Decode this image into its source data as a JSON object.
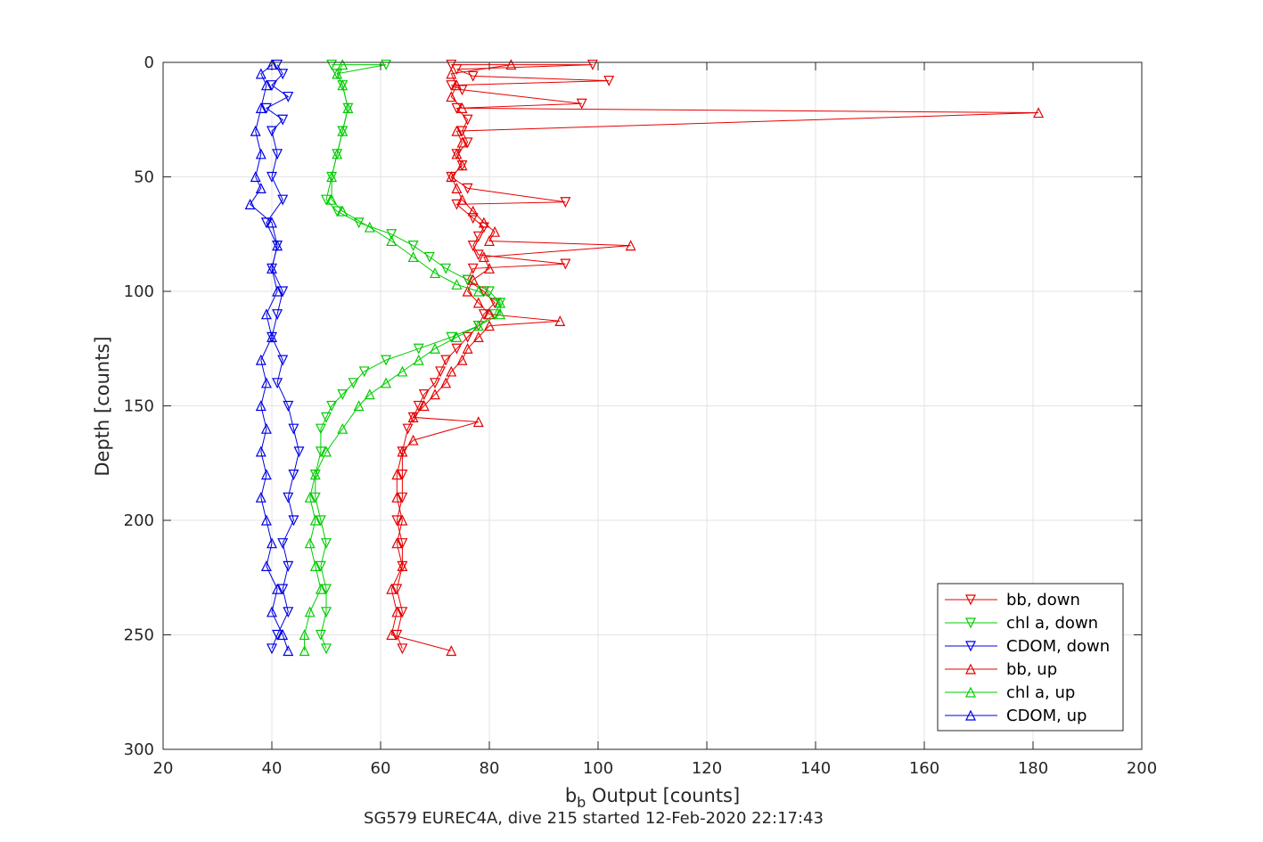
{
  "chart_data": {
    "type": "line",
    "xlabel_main": "b",
    "xlabel_sub": "b",
    "xlabel_rest": " Output [counts]",
    "ylabel": "Depth [counts]",
    "caption_a": "SG579 EUREC4A, dive 215",
    "caption_b": "started 12-Feb-2020 22:17:43",
    "xlim": [
      20,
      200
    ],
    "ylim": [
      0,
      300
    ],
    "y_reversed": true,
    "grid": true,
    "xticks": [
      "20",
      "40",
      "60",
      "80",
      "100",
      "120",
      "140",
      "160",
      "180",
      "200"
    ],
    "yticks": [
      "0",
      "50",
      "100",
      "150",
      "200",
      "250",
      "300"
    ],
    "legend_position": "lower-right",
    "series": [
      {
        "name": "bb, down",
        "color": "#e60000",
        "marker": "down",
        "points": [
          [
            73,
            1
          ],
          [
            99,
            1
          ],
          [
            74,
            3
          ],
          [
            77,
            6
          ],
          [
            102,
            8
          ],
          [
            73,
            10
          ],
          [
            75,
            12
          ],
          [
            97,
            18
          ],
          [
            74,
            20
          ],
          [
            76,
            25
          ],
          [
            75,
            30
          ],
          [
            76,
            35
          ],
          [
            74,
            40
          ],
          [
            75,
            45
          ],
          [
            73,
            50
          ],
          [
            76,
            55
          ],
          [
            94,
            61
          ],
          [
            74,
            62
          ],
          [
            77,
            68
          ],
          [
            79,
            72
          ],
          [
            78,
            76
          ],
          [
            77,
            80
          ],
          [
            78,
            84
          ],
          [
            94,
            88
          ],
          [
            77,
            90
          ],
          [
            76,
            95
          ],
          [
            79,
            100
          ],
          [
            81,
            105
          ],
          [
            79,
            110
          ],
          [
            78,
            115
          ],
          [
            76,
            120
          ],
          [
            74,
            125
          ],
          [
            72,
            130
          ],
          [
            71,
            135
          ],
          [
            70,
            140
          ],
          [
            68,
            145
          ],
          [
            67,
            150
          ],
          [
            66,
            155
          ],
          [
            65,
            160
          ],
          [
            64,
            170
          ],
          [
            64,
            180
          ],
          [
            64,
            190
          ],
          [
            63,
            200
          ],
          [
            64,
            210
          ],
          [
            64,
            220
          ],
          [
            63,
            230
          ],
          [
            64,
            240
          ],
          [
            63,
            250
          ],
          [
            64,
            256
          ]
        ]
      },
      {
        "name": "chl a, down",
        "color": "#00cc00",
        "marker": "down",
        "points": [
          [
            51,
            1
          ],
          [
            61,
            1
          ],
          [
            52,
            5
          ],
          [
            53,
            10
          ],
          [
            54,
            20
          ],
          [
            53,
            30
          ],
          [
            52,
            40
          ],
          [
            51,
            50
          ],
          [
            50,
            60
          ],
          [
            52,
            65
          ],
          [
            56,
            70
          ],
          [
            62,
            75
          ],
          [
            66,
            80
          ],
          [
            69,
            85
          ],
          [
            72,
            90
          ],
          [
            76,
            95
          ],
          [
            80,
            100
          ],
          [
            82,
            105
          ],
          [
            81,
            110
          ],
          [
            78,
            115
          ],
          [
            73,
            120
          ],
          [
            67,
            125
          ],
          [
            61,
            130
          ],
          [
            57,
            135
          ],
          [
            55,
            140
          ],
          [
            53,
            145
          ],
          [
            51,
            150
          ],
          [
            50,
            155
          ],
          [
            49,
            160
          ],
          [
            49,
            170
          ],
          [
            48,
            180
          ],
          [
            48,
            190
          ],
          [
            49,
            200
          ],
          [
            50,
            210
          ],
          [
            49,
            220
          ],
          [
            50,
            230
          ],
          [
            50,
            240
          ],
          [
            49,
            250
          ],
          [
            50,
            256
          ]
        ]
      },
      {
        "name": "CDOM, down",
        "color": "#0000e6",
        "marker": "down",
        "points": [
          [
            41,
            1
          ],
          [
            42,
            5
          ],
          [
            40,
            10
          ],
          [
            43,
            15
          ],
          [
            39,
            20
          ],
          [
            42,
            25
          ],
          [
            40,
            30
          ],
          [
            41,
            40
          ],
          [
            40,
            50
          ],
          [
            42,
            60
          ],
          [
            39,
            70
          ],
          [
            41,
            80
          ],
          [
            40,
            90
          ],
          [
            42,
            100
          ],
          [
            41,
            110
          ],
          [
            40,
            120
          ],
          [
            42,
            130
          ],
          [
            41,
            140
          ],
          [
            43,
            150
          ],
          [
            44,
            160
          ],
          [
            45,
            170
          ],
          [
            44,
            180
          ],
          [
            43,
            190
          ],
          [
            44,
            200
          ],
          [
            42,
            210
          ],
          [
            43,
            220
          ],
          [
            42,
            230
          ],
          [
            43,
            240
          ],
          [
            41,
            250
          ],
          [
            40,
            256
          ]
        ]
      },
      {
        "name": "bb, up",
        "color": "#e60000",
        "marker": "up",
        "points": [
          [
            73,
            257
          ],
          [
            62,
            250
          ],
          [
            63,
            240
          ],
          [
            62,
            230
          ],
          [
            64,
            220
          ],
          [
            63,
            210
          ],
          [
            64,
            200
          ],
          [
            63,
            190
          ],
          [
            63,
            180
          ],
          [
            64,
            170
          ],
          [
            66,
            165
          ],
          [
            78,
            157
          ],
          [
            66,
            155
          ],
          [
            68,
            150
          ],
          [
            70,
            145
          ],
          [
            72,
            140
          ],
          [
            73,
            135
          ],
          [
            75,
            130
          ],
          [
            76,
            125
          ],
          [
            78,
            120
          ],
          [
            80,
            115
          ],
          [
            93,
            113
          ],
          [
            80,
            110
          ],
          [
            78,
            105
          ],
          [
            76,
            100
          ],
          [
            77,
            95
          ],
          [
            80,
            90
          ],
          [
            79,
            85
          ],
          [
            106,
            80
          ],
          [
            80,
            78
          ],
          [
            81,
            74
          ],
          [
            79,
            70
          ],
          [
            77,
            65
          ],
          [
            75,
            60
          ],
          [
            74,
            55
          ],
          [
            73,
            50
          ],
          [
            75,
            45
          ],
          [
            74,
            40
          ],
          [
            75,
            35
          ],
          [
            74,
            30
          ],
          [
            181,
            22
          ],
          [
            75,
            20
          ],
          [
            73,
            15
          ],
          [
            74,
            10
          ],
          [
            73,
            5
          ],
          [
            84,
            1
          ]
        ]
      },
      {
        "name": "chl a, up",
        "color": "#00cc00",
        "marker": "up",
        "points": [
          [
            46,
            257
          ],
          [
            46,
            250
          ],
          [
            47,
            240
          ],
          [
            49,
            230
          ],
          [
            48,
            220
          ],
          [
            47,
            210
          ],
          [
            48,
            200
          ],
          [
            47,
            190
          ],
          [
            48,
            180
          ],
          [
            50,
            170
          ],
          [
            53,
            160
          ],
          [
            56,
            150
          ],
          [
            58,
            145
          ],
          [
            61,
            140
          ],
          [
            64,
            135
          ],
          [
            67,
            130
          ],
          [
            70,
            125
          ],
          [
            74,
            120
          ],
          [
            78,
            115
          ],
          [
            82,
            110
          ],
          [
            82,
            105
          ],
          [
            78,
            100
          ],
          [
            74,
            97
          ],
          [
            70,
            92
          ],
          [
            66,
            85
          ],
          [
            62,
            78
          ],
          [
            58,
            72
          ],
          [
            53,
            65
          ],
          [
            51,
            60
          ],
          [
            51,
            50
          ],
          [
            52,
            40
          ],
          [
            53,
            30
          ],
          [
            54,
            20
          ],
          [
            53,
            10
          ],
          [
            52,
            5
          ],
          [
            53,
            1
          ]
        ]
      },
      {
        "name": "CDOM, up",
        "color": "#0000e6",
        "marker": "up",
        "points": [
          [
            43,
            257
          ],
          [
            42,
            250
          ],
          [
            40,
            240
          ],
          [
            41,
            230
          ],
          [
            39,
            220
          ],
          [
            40,
            210
          ],
          [
            39,
            200
          ],
          [
            38,
            190
          ],
          [
            39,
            180
          ],
          [
            38,
            170
          ],
          [
            39,
            160
          ],
          [
            38,
            150
          ],
          [
            39,
            140
          ],
          [
            38,
            130
          ],
          [
            40,
            120
          ],
          [
            39,
            110
          ],
          [
            41,
            100
          ],
          [
            40,
            90
          ],
          [
            41,
            80
          ],
          [
            40,
            70
          ],
          [
            36,
            62
          ],
          [
            38,
            55
          ],
          [
            37,
            50
          ],
          [
            38,
            40
          ],
          [
            37,
            30
          ],
          [
            38,
            20
          ],
          [
            39,
            10
          ],
          [
            38,
            5
          ],
          [
            40,
            1
          ]
        ]
      }
    ]
  }
}
